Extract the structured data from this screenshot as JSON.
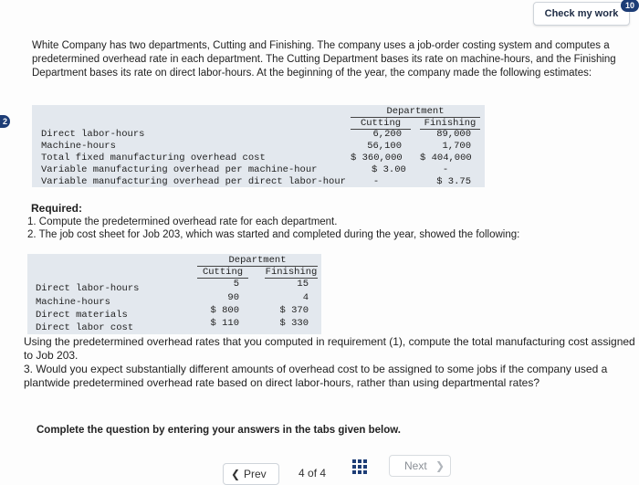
{
  "header": {
    "check_label": "Check my work",
    "badge": "10",
    "question_marker": "2"
  },
  "intro_text": "White Company has two departments, Cutting and Finishing. The company uses a job-order costing system and computes a predetermined overhead rate in each department. The Cutting Department bases its rate on machine-hours, and the Finishing Department bases its rate on direct labor-hours. At the beginning of the year, the company made the following estimates:",
  "estimates_table": {
    "group_header": "Department",
    "columns": [
      "Cutting",
      "Finishing"
    ],
    "rows": [
      {
        "label": "Direct labor-hours",
        "cutting": "6,200",
        "finishing": "89,000"
      },
      {
        "label": "Machine-hours",
        "cutting": "56,100",
        "finishing": "1,700"
      },
      {
        "label": "Total fixed manufacturing overhead cost",
        "cutting": "$ 360,000",
        "finishing": "$ 404,000"
      },
      {
        "label": "Variable manufacturing overhead per machine-hour",
        "cutting": "$ 3.00",
        "finishing": "-"
      },
      {
        "label": "Variable manufacturing overhead per direct labor-hour",
        "cutting": "-",
        "finishing": "$ 3.75"
      }
    ]
  },
  "required": {
    "title": "Required:",
    "item1": "1. Compute the predetermined overhead rate for each department.",
    "item2": "2. The job cost sheet for Job 203, which was started and completed during the year, showed the following:"
  },
  "job_table": {
    "group_header": "Department",
    "columns": [
      "Cutting",
      "Finishing"
    ],
    "rows": [
      {
        "label": "Direct labor-hours",
        "cutting": "5",
        "finishing": "15"
      },
      {
        "label": "Machine-hours",
        "cutting": "90",
        "finishing": "4"
      },
      {
        "label": "Direct materials",
        "cutting": "$ 800",
        "finishing": "$ 370"
      },
      {
        "label": "Direct labor cost",
        "cutting": "$ 110",
        "finishing": "$ 330"
      }
    ]
  },
  "question_text_a": "Using the predetermined overhead rates that you computed in requirement (1), compute the total manufacturing cost assigned to Job 203.",
  "question_text_b": "3. Would you expect substantially different amounts of overhead cost to be assigned to some jobs if the company used a plantwide predetermined overhead rate based on direct labor-hours, rather than using departmental rates?",
  "complete_instruction": "Complete the question by entering your answers in the tabs given below.",
  "pager": {
    "prev_label": "Prev",
    "current": "4",
    "of_text": "of",
    "total": "4",
    "next_label": "Next"
  }
}
